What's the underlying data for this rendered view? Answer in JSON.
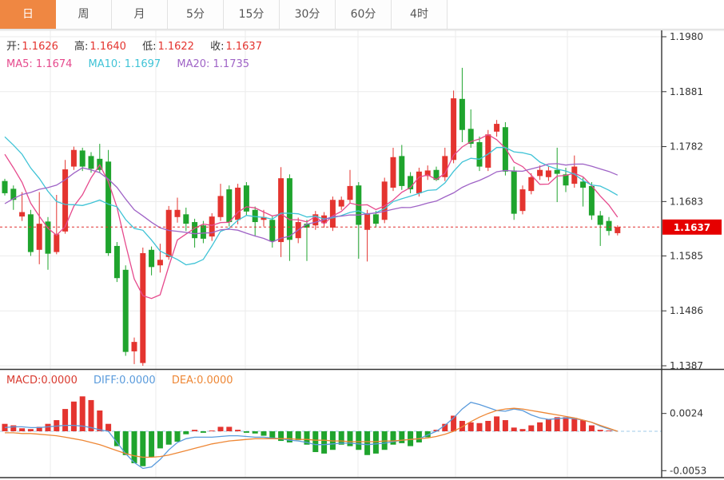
{
  "tabs": [
    {
      "label": "日",
      "active": true
    },
    {
      "label": "周",
      "active": false
    },
    {
      "label": "月",
      "active": false
    },
    {
      "label": "5分",
      "active": false
    },
    {
      "label": "15分",
      "active": false
    },
    {
      "label": "30分",
      "active": false
    },
    {
      "label": "60分",
      "active": false
    },
    {
      "label": "4时",
      "active": false
    }
  ],
  "legend_ohlc": [
    {
      "label": "开:",
      "value": "1.1626"
    },
    {
      "label": "高:",
      "value": "1.1640"
    },
    {
      "label": "低:",
      "value": "1.1622"
    },
    {
      "label": "收:",
      "value": "1.1637"
    }
  ],
  "legend_ma": [
    {
      "label": "MA5:",
      "value": "1.1674",
      "color": "#e64a8d"
    },
    {
      "label": "MA10:",
      "value": "1.1697",
      "color": "#3fc3d6"
    },
    {
      "label": "MA20:",
      "value": "1.1735",
      "color": "#9f63c6"
    }
  ],
  "legend_macd": [
    {
      "label": "MACD:",
      "value": "0.0000",
      "color": "#d93a2f"
    },
    {
      "label": "DIFF:",
      "value": "0.0000",
      "color": "#5a9bdc"
    },
    {
      "label": "DEA:",
      "value": "0.0000",
      "color": "#ee8735"
    }
  ],
  "price_tag": "1.1637",
  "colors": {
    "up": "#e4342f",
    "down": "#1fa42d",
    "ma5": "#e64a8d",
    "ma10": "#3fc3d6",
    "ma20": "#9f63c6",
    "diff": "#5a9bdc",
    "dea": "#ee8735",
    "tag_bg": "#e60000",
    "current_line": "#e03030",
    "macd_zero_dash": "#9fcbe8",
    "tab_active": "#ef8742",
    "grid": "#ebebeb",
    "axis": "#333333",
    "label": "#333333"
  },
  "chart_data": {
    "type": "candlestick",
    "interval_selected": "日",
    "price_axis_labels": [
      "1.1980",
      "1.1881",
      "1.1782",
      "1.1683",
      "1.1585",
      "1.1486",
      "1.1387"
    ],
    "price_min": 1.1387,
    "price_max": 1.198,
    "current_price": 1.1637,
    "ohlc_legend": {
      "open": 1.1626,
      "high": 1.164,
      "low": 1.1622,
      "close": 1.1637
    },
    "ma_legend": {
      "ma5": 1.1674,
      "ma10": 1.1697,
      "ma20": 1.1735
    },
    "open": [
      1.172,
      1.1706,
      1.1656,
      1.166,
      1.1596,
      1.1647,
      1.1592,
      1.1629,
      1.1746,
      1.1775,
      1.1765,
      1.176,
      1.1755,
      1.1603,
      1.156,
      1.1413,
      1.1392,
      1.1596,
      1.1568,
      1.1583,
      1.1655,
      1.166,
      1.1646,
      1.164,
      1.162,
      1.1655,
      1.1705,
      1.165,
      1.1712,
      1.1668,
      1.165,
      1.165,
      1.161,
      1.1725,
      1.1617,
      1.1643,
      1.164,
      1.1644,
      1.1636,
      1.1674,
      1.1686,
      1.1712,
      1.1632,
      1.166,
      1.165,
      1.1708,
      1.1765,
      1.1729,
      1.1698,
      1.1729,
      1.174,
      1.1727,
      1.1758,
      1.1868,
      1.1814,
      1.179,
      1.1744,
      1.1809,
      1.1817,
      1.1739,
      1.1666,
      1.1702,
      1.1729,
      1.1727,
      1.174,
      1.1732,
      1.1715,
      1.1719,
      1.1711,
      1.1658,
      1.1648,
      1.1626
    ],
    "high": [
      1.1724,
      1.1712,
      1.17,
      1.1668,
      1.17,
      1.1655,
      1.1695,
      1.1758,
      1.1782,
      1.178,
      1.1772,
      1.1787,
      1.1776,
      1.161,
      1.1568,
      1.1438,
      1.16,
      1.1602,
      1.1607,
      1.1675,
      1.169,
      1.1672,
      1.1652,
      1.1648,
      1.1662,
      1.1715,
      1.1712,
      1.1715,
      1.1718,
      1.1674,
      1.1668,
      1.1656,
      1.1745,
      1.1732,
      1.1654,
      1.165,
      1.1666,
      1.1664,
      1.1692,
      1.1692,
      1.174,
      1.1718,
      1.1668,
      1.1666,
      1.1726,
      1.178,
      1.1785,
      1.1736,
      1.1744,
      1.1748,
      1.1746,
      1.178,
      1.1883,
      1.1924,
      1.1849,
      1.18,
      1.1812,
      1.183,
      1.1826,
      1.1746,
      1.1712,
      1.1734,
      1.1748,
      1.1746,
      1.178,
      1.1744,
      1.1766,
      1.1726,
      1.1718,
      1.1666,
      1.1655,
      1.164
    ],
    "low": [
      1.1694,
      1.1668,
      1.1648,
      1.1585,
      1.157,
      1.156,
      1.1588,
      1.1625,
      1.174,
      1.1738,
      1.1735,
      1.1735,
      1.1585,
      1.1538,
      1.1405,
      1.139,
      1.1387,
      1.155,
      1.1555,
      1.1578,
      1.1645,
      1.163,
      1.16,
      1.1608,
      1.1612,
      1.1648,
      1.1638,
      1.1642,
      1.1658,
      1.162,
      1.1638,
      1.16,
      1.1583,
      1.1576,
      1.1608,
      1.1576,
      1.1632,
      1.1636,
      1.163,
      1.1668,
      1.168,
      1.158,
      1.1575,
      1.1636,
      1.1644,
      1.1702,
      1.1704,
      1.1698,
      1.1692,
      1.1722,
      1.172,
      1.172,
      1.1752,
      1.179,
      1.178,
      1.1738,
      1.1738,
      1.18,
      1.173,
      1.165,
      1.166,
      1.1696,
      1.1722,
      1.172,
      1.1682,
      1.17,
      1.1708,
      1.1674,
      1.165,
      1.1603,
      1.1622,
      1.1622
    ],
    "close": [
      1.1698,
      1.1686,
      1.1664,
      1.1592,
      1.1643,
      1.1589,
      1.1624,
      1.1741,
      1.1776,
      1.1746,
      1.1742,
      1.174,
      1.159,
      1.1545,
      1.1412,
      1.143,
      1.159,
      1.1565,
      1.1578,
      1.1668,
      1.1668,
      1.1643,
      1.1617,
      1.1616,
      1.1656,
      1.1693,
      1.1646,
      1.1708,
      1.1665,
      1.1646,
      1.1655,
      1.1611,
      1.1725,
      1.1614,
      1.1646,
      1.1636,
      1.166,
      1.1658,
      1.1686,
      1.1686,
      1.1711,
      1.1641,
      1.1662,
      1.1643,
      1.1719,
      1.1763,
      1.1711,
      1.1705,
      1.1737,
      1.1739,
      1.1722,
      1.1765,
      1.1869,
      1.1812,
      1.1787,
      1.1746,
      1.1804,
      1.1823,
      1.1737,
      1.1661,
      1.1705,
      1.1727,
      1.174,
      1.1739,
      1.1733,
      1.1712,
      1.1746,
      1.1708,
      1.1658,
      1.1641,
      1.163,
      1.1637
    ],
    "ma_windows": [
      5,
      10,
      20
    ],
    "ma_prehistory_closes": [
      1.15,
      1.1505,
      1.1512,
      1.152,
      1.153,
      1.1528,
      1.1535,
      1.1545,
      1.154,
      1.1552,
      1.182,
      1.1835,
      1.1828,
      1.184,
      1.1832,
      1.182,
      1.1808,
      1.1795,
      1.178,
      1.176
    ],
    "macd": {
      "value_unit": 0.0001,
      "axis_labels": [
        "0.0024",
        "-0.0053"
      ],
      "hist": [
        10,
        8,
        4,
        3,
        6,
        10,
        15,
        30,
        40,
        47,
        42,
        28,
        10,
        -20,
        -32,
        -43,
        -47,
        -35,
        -23,
        -18,
        -14,
        -4,
        2,
        -2,
        1,
        6,
        6,
        2,
        -2,
        -3,
        -6,
        -10,
        -13,
        -15,
        -12,
        -18,
        -28,
        -30,
        -25,
        -18,
        -20,
        -25,
        -32,
        -30,
        -25,
        -18,
        -16,
        -20,
        -15,
        -8,
        2,
        10,
        21,
        14,
        12,
        11,
        14,
        20,
        15,
        5,
        3,
        8,
        12,
        16,
        19,
        19,
        18,
        15,
        8,
        2,
        1,
        0
      ],
      "diff": [
        5,
        6,
        6,
        5,
        5,
        6,
        7,
        8,
        8,
        7,
        5,
        2,
        0,
        -15,
        -30,
        -42,
        -50,
        -48,
        -38,
        -25,
        -15,
        -10,
        -8,
        -8,
        -8,
        -7,
        -6,
        -6,
        -7,
        -8,
        -8,
        -9,
        -10,
        -12,
        -13,
        -15,
        -18,
        -18,
        -17,
        -16,
        -16,
        -17,
        -18,
        -17,
        -16,
        -14,
        -12,
        -11,
        -10,
        -5,
        0,
        8,
        18,
        30,
        39,
        36,
        32,
        28,
        27,
        30,
        28,
        22,
        18,
        16,
        17,
        18,
        17,
        15,
        12,
        7,
        3,
        0
      ],
      "dea": [
        -2,
        -2,
        -3,
        -3,
        -4,
        -5,
        -6,
        -8,
        -10,
        -12,
        -15,
        -18,
        -22,
        -26,
        -30,
        -33,
        -35,
        -35,
        -34,
        -32,
        -29,
        -26,
        -23,
        -20,
        -17,
        -15,
        -13,
        -12,
        -11,
        -10,
        -10,
        -10,
        -10,
        -10,
        -11,
        -11,
        -12,
        -12,
        -13,
        -13,
        -14,
        -14,
        -14,
        -14,
        -13,
        -13,
        -12,
        -11,
        -10,
        -9,
        -7,
        -4,
        0,
        6,
        13,
        19,
        24,
        28,
        30,
        31,
        30,
        28,
        26,
        24,
        22,
        20,
        18,
        15,
        12,
        8,
        4,
        0
      ]
    }
  }
}
